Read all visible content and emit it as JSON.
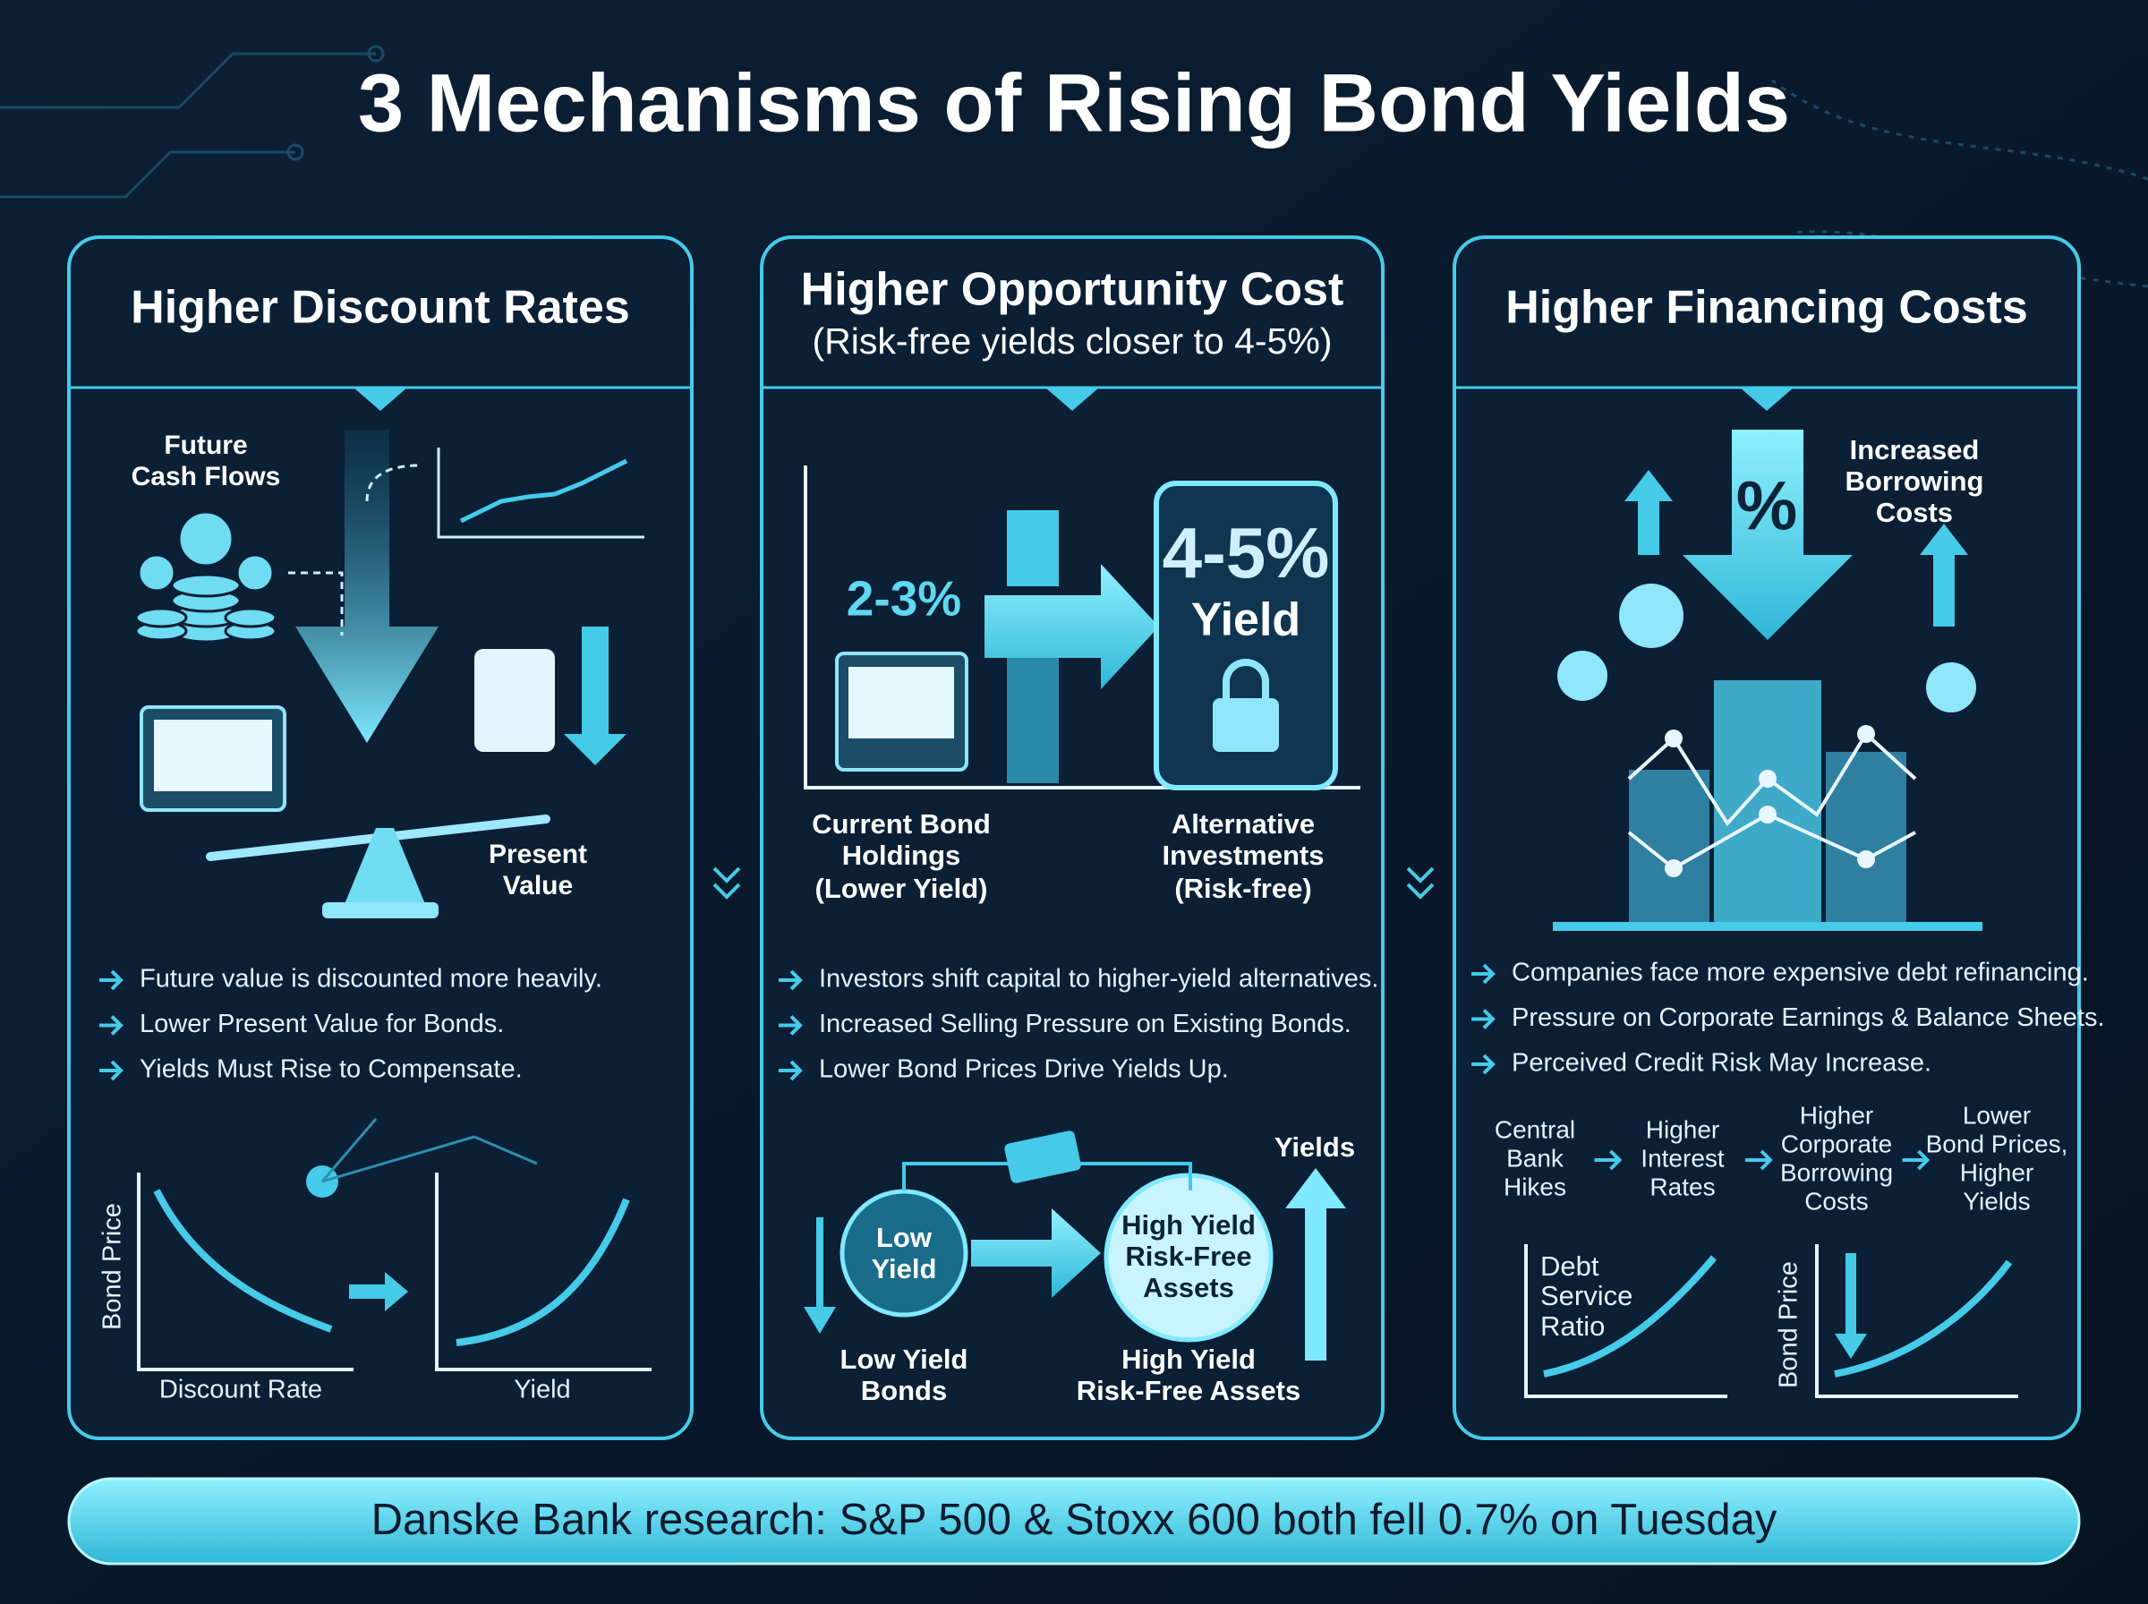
{
  "title": "3 Mechanisms of Rising Bond Yields",
  "panels": [
    {
      "heading": "Higher Discount Rates",
      "labels": [
        [
          "Future",
          "Cash Flows"
        ],
        [
          "Present",
          "Value"
        ]
      ],
      "bullets": [
        "Future value is discounted more heavily.",
        "Lower Present Value for Bonds.",
        "Yields Must Rise to Compensate."
      ],
      "chart_labels": [
        "Bond Price",
        "Discount Rate",
        "Yield"
      ]
    },
    {
      "heading": "Higher Opportunity Cost",
      "subheading": "(Risk-free yields closer to 4-5%)",
      "labels": [
        "2-3%",
        "4-5%",
        "Yield"
      ],
      "columns": [
        [
          "Current Bond",
          "Holdings",
          "(Lower Yield)"
        ],
        [
          "Alternative",
          "Investments",
          "(Risk-free)"
        ]
      ],
      "bullets": [
        "Investors shift capital to higher-yield alternatives.",
        "Increased Selling Pressure on Existing Bonds.",
        "Lower Bond Prices Drive Yields Up."
      ],
      "flow": {
        "circles": [
          [
            "Low",
            "Yield"
          ],
          [
            "High Yield",
            "Risk-Free",
            "Assets"
          ]
        ],
        "arrow_label": "Yields",
        "captions": [
          [
            "Low Yield",
            "Bonds"
          ],
          [
            "High Yield",
            "Risk-Free Assets"
          ]
        ]
      }
    },
    {
      "heading": "Higher Financing Costs",
      "labels": [
        [
          "Increased",
          "Borrowing",
          "Costs"
        ],
        [
          "%"
        ]
      ],
      "bullets": [
        "Companies face more expensive debt refinancing.",
        "Pressure on Corporate Earnings & Balance Sheets.",
        "Perceived Credit Risk May Increase."
      ],
      "steps": [
        [
          "Central",
          "Bank",
          "Hikes"
        ],
        [
          "Higher",
          "Interest",
          "Rates"
        ],
        [
          "Higher",
          "Corporate",
          "Borrowing",
          "Costs"
        ],
        [
          "Lower",
          "Bond Prices,",
          "Higher",
          "Yields"
        ]
      ],
      "chart_labels": [
        [
          "Debt",
          "Service",
          "Ratio"
        ],
        [
          "Bond Price"
        ]
      ]
    }
  ],
  "footer": "Danske Bank research: S&P 500 & Stoxx 600 both fell 0.7% on Tuesday"
}
